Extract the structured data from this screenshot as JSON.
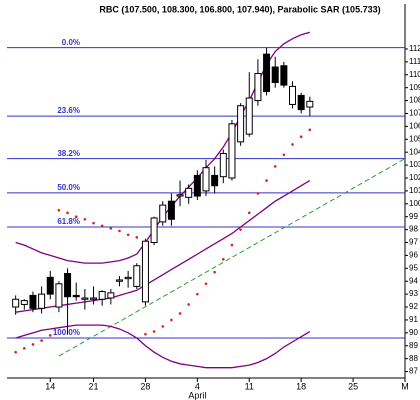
{
  "chart_data": {
    "type": "candlestick",
    "title": "RBC (107.500, 108.300, 106.800, 107.940), Parabolic SAR (105.733)",
    "x": [
      1,
      2,
      3,
      4,
      5,
      6,
      7,
      8,
      9,
      10,
      11,
      12,
      13,
      14,
      15,
      16,
      17,
      18,
      19,
      20,
      21,
      22,
      23,
      24,
      25,
      26,
      27,
      28,
      29,
      30,
      31,
      32,
      33,
      34,
      35
    ],
    "open": [
      92.0,
      92.2,
      92.9,
      91.9,
      94.3,
      92.0,
      94.6,
      92.9,
      92.6,
      92.6,
      92.6,
      92.7,
      94.0,
      94.2,
      93.6,
      92.4,
      97.0,
      98.6,
      100.2,
      100.6,
      100.5,
      102.2,
      101.0,
      102.2,
      102.1,
      102.0,
      104.8,
      105.4,
      108.0,
      111.6,
      110.6,
      110.7,
      107.7,
      108.4,
      107.5
    ],
    "high": [
      92.9,
      92.6,
      93.2,
      93.6,
      94.8,
      94.0,
      95.0,
      93.9,
      93.4,
      93.6,
      93.3,
      93.4,
      94.4,
      94.8,
      95.4,
      97.3,
      99.0,
      100.2,
      100.8,
      101.8,
      101.5,
      102.6,
      103.4,
      102.9,
      104.2,
      106.5,
      107.8,
      110.2,
      111.2,
      112.1,
      111.4,
      111.0,
      109.5,
      108.6,
      108.3
    ],
    "low": [
      91.4,
      91.8,
      91.6,
      91.5,
      92.6,
      91.6,
      89.9,
      92.5,
      91.8,
      92.2,
      92.1,
      92.2,
      93.6,
      93.5,
      93.4,
      92.1,
      96.8,
      98.3,
      98.3,
      99.8,
      100.0,
      100.3,
      100.6,
      100.8,
      101.6,
      101.8,
      104.5,
      105.2,
      107.6,
      108.4,
      109.0,
      109.0,
      107.4,
      107.0,
      106.8
    ],
    "close": [
      92.6,
      92.5,
      91.9,
      93.0,
      93.0,
      93.8,
      92.8,
      92.8,
      92.7,
      92.7,
      93.2,
      93.1,
      94.1,
      94.3,
      95.2,
      97.1,
      98.9,
      99.9,
      98.8,
      100.7,
      101.2,
      100.6,
      102.8,
      101.4,
      103.9,
      106.2,
      107.6,
      108.2,
      110.1,
      108.7,
      109.4,
      109.2,
      109.1,
      107.3,
      107.94
    ],
    "up_color": "#ffffff",
    "down_color": "#000000",
    "sar": {
      "color": "#e02020",
      "values": [
        88.5,
        88.8,
        89.1,
        89.4,
        89.8,
        99.5,
        99.3,
        99.0,
        98.8,
        98.5,
        98.3,
        98.1,
        97.9,
        97.6,
        97.4,
        89.9,
        90.1,
        90.5,
        91.0,
        91.5,
        92.2,
        93.0,
        93.8,
        94.7,
        95.7,
        96.8,
        98.0,
        99.3,
        100.8,
        101.8,
        102.9,
        103.8,
        104.6,
        105.2,
        105.733
      ]
    },
    "bands": [
      {
        "color": "#800080",
        "values": [
          97.0,
          96.8,
          96.5,
          96.2,
          96.0,
          95.8,
          95.6,
          95.5,
          95.4,
          95.4,
          95.4,
          95.5,
          95.6,
          95.8,
          96.1,
          97.0,
          98.0,
          99.0,
          99.8,
          100.6,
          101.3,
          102.0,
          102.8,
          103.5,
          104.4,
          105.5,
          106.8,
          108.0,
          109.4,
          110.8,
          111.8,
          112.4,
          112.8,
          113.1,
          113.3
        ]
      },
      {
        "color": "#800080",
        "values": [
          91.6,
          91.7,
          91.8,
          91.9,
          92.0,
          92.1,
          92.2,
          92.3,
          92.4,
          92.5,
          92.6,
          92.7,
          92.9,
          93.1,
          93.3,
          93.7,
          94.1,
          94.5,
          94.9,
          95.3,
          95.7,
          96.1,
          96.5,
          96.9,
          97.3,
          97.7,
          98.2,
          98.7,
          99.2,
          99.7,
          100.2,
          100.6,
          101.0,
          101.4,
          101.8
        ]
      },
      {
        "color": "#800080",
        "values": [
          89.6,
          89.8,
          90.0,
          90.2,
          90.3,
          90.4,
          90.5,
          90.6,
          90.6,
          90.6,
          90.6,
          90.5,
          90.3,
          90.0,
          89.6,
          89.0,
          88.5,
          88.1,
          87.8,
          87.6,
          87.5,
          87.4,
          87.3,
          87.3,
          87.3,
          87.3,
          87.4,
          87.5,
          87.7,
          88.0,
          88.4,
          88.9,
          89.3,
          89.7,
          90.1
        ]
      }
    ],
    "trendline": {
      "color": "#2e9e2e",
      "x": [
        6,
        46
      ],
      "values": [
        88.2,
        103.5
      ]
    },
    "fib_color": "#3333cc",
    "fib_levels": [
      {
        "label": "0.0%",
        "value": 112.1
      },
      {
        "label": "23.6%",
        "value": 106.8
      },
      {
        "label": "38.2%",
        "value": 103.5
      },
      {
        "label": "50.0%",
        "value": 100.85
      },
      {
        "label": "61.8%",
        "value": 98.2
      },
      {
        "label": "100.0%",
        "value": 89.6
      }
    ],
    "xlim": [
      0,
      46
    ],
    "xticks": [
      {
        "value": 5,
        "label": "14"
      },
      {
        "value": 10,
        "label": "21"
      },
      {
        "value": 16,
        "label": "28"
      },
      {
        "value": 22,
        "label": "4"
      },
      {
        "value": 28,
        "label": "11"
      },
      {
        "value": 34,
        "label": "18"
      },
      {
        "value": 40,
        "label": "25"
      },
      {
        "value": 46,
        "label": "M"
      }
    ],
    "x_group_labels": [
      {
        "label": "April",
        "at": 22
      }
    ],
    "ylim": [
      86.5,
      114.4
    ],
    "yticks": [
      87,
      88,
      89,
      90,
      91,
      92,
      93,
      94,
      95,
      96,
      97,
      98,
      99,
      100,
      101,
      102,
      103,
      104,
      105,
      106,
      107,
      108,
      109,
      110,
      111,
      112
    ]
  }
}
